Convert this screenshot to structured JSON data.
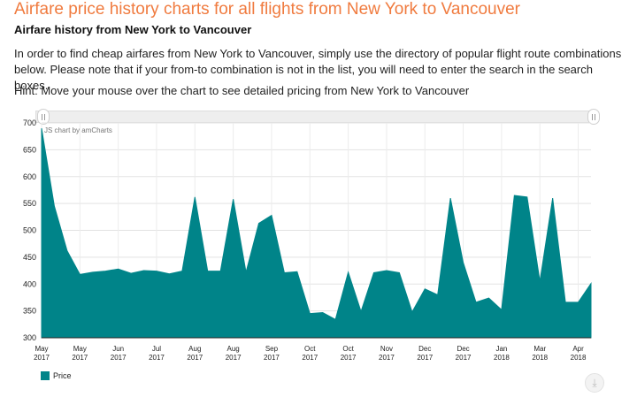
{
  "page": {
    "title": "Airfare price history charts for all flights from New York to Vancouver",
    "subtitle": "Airfare history from New York to Vancouver",
    "intro": "In order to find cheap airfares from New York to Vancouver, simply use the directory of popular flight route combinations below. Please note that if your from-to combination is not in the list, you will need to enter the search in the search boxes.",
    "hint": "Hint: Move your mouse over the chart to see detailed pricing from New York to Vancouver"
  },
  "chart_data": {
    "type": "area",
    "watermark": "JS chart by amCharts",
    "color": "#008489",
    "ylim": [
      300,
      700
    ],
    "yticks": [
      300,
      350,
      400,
      450,
      500,
      550,
      600,
      650,
      700
    ],
    "xticks": [
      {
        "i": 0,
        "month": "May",
        "year": "2017"
      },
      {
        "i": 3,
        "month": "May",
        "year": "2017"
      },
      {
        "i": 6,
        "month": "Jun",
        "year": "2017"
      },
      {
        "i": 9,
        "month": "Jul",
        "year": "2017"
      },
      {
        "i": 12,
        "month": "Aug",
        "year": "2017"
      },
      {
        "i": 15,
        "month": "Aug",
        "year": "2017"
      },
      {
        "i": 18,
        "month": "Sep",
        "year": "2017"
      },
      {
        "i": 21,
        "month": "Oct",
        "year": "2017"
      },
      {
        "i": 24,
        "month": "Oct",
        "year": "2017"
      },
      {
        "i": 27,
        "month": "Nov",
        "year": "2017"
      },
      {
        "i": 30,
        "month": "Dec",
        "year": "2017"
      },
      {
        "i": 33,
        "month": "Dec",
        "year": "2017"
      },
      {
        "i": 36,
        "month": "Jan",
        "year": "2018"
      },
      {
        "i": 39,
        "month": "Mar",
        "year": "2018"
      },
      {
        "i": 42,
        "month": "Apr",
        "year": "2018"
      }
    ],
    "series": [
      {
        "name": "Price",
        "values": [
          690,
          545,
          462,
          418,
          422,
          424,
          428,
          420,
          425,
          424,
          419,
          424,
          562,
          424,
          424,
          558,
          422,
          513,
          528,
          421,
          423,
          345,
          347,
          334,
          422,
          349,
          421,
          425,
          421,
          348,
          391,
          380,
          560,
          440,
          366,
          374,
          352,
          565,
          562,
          405,
          560,
          366,
          366,
          401
        ]
      }
    ]
  },
  "legend": {
    "label": "Price"
  },
  "icons": {
    "download": "download-icon"
  }
}
